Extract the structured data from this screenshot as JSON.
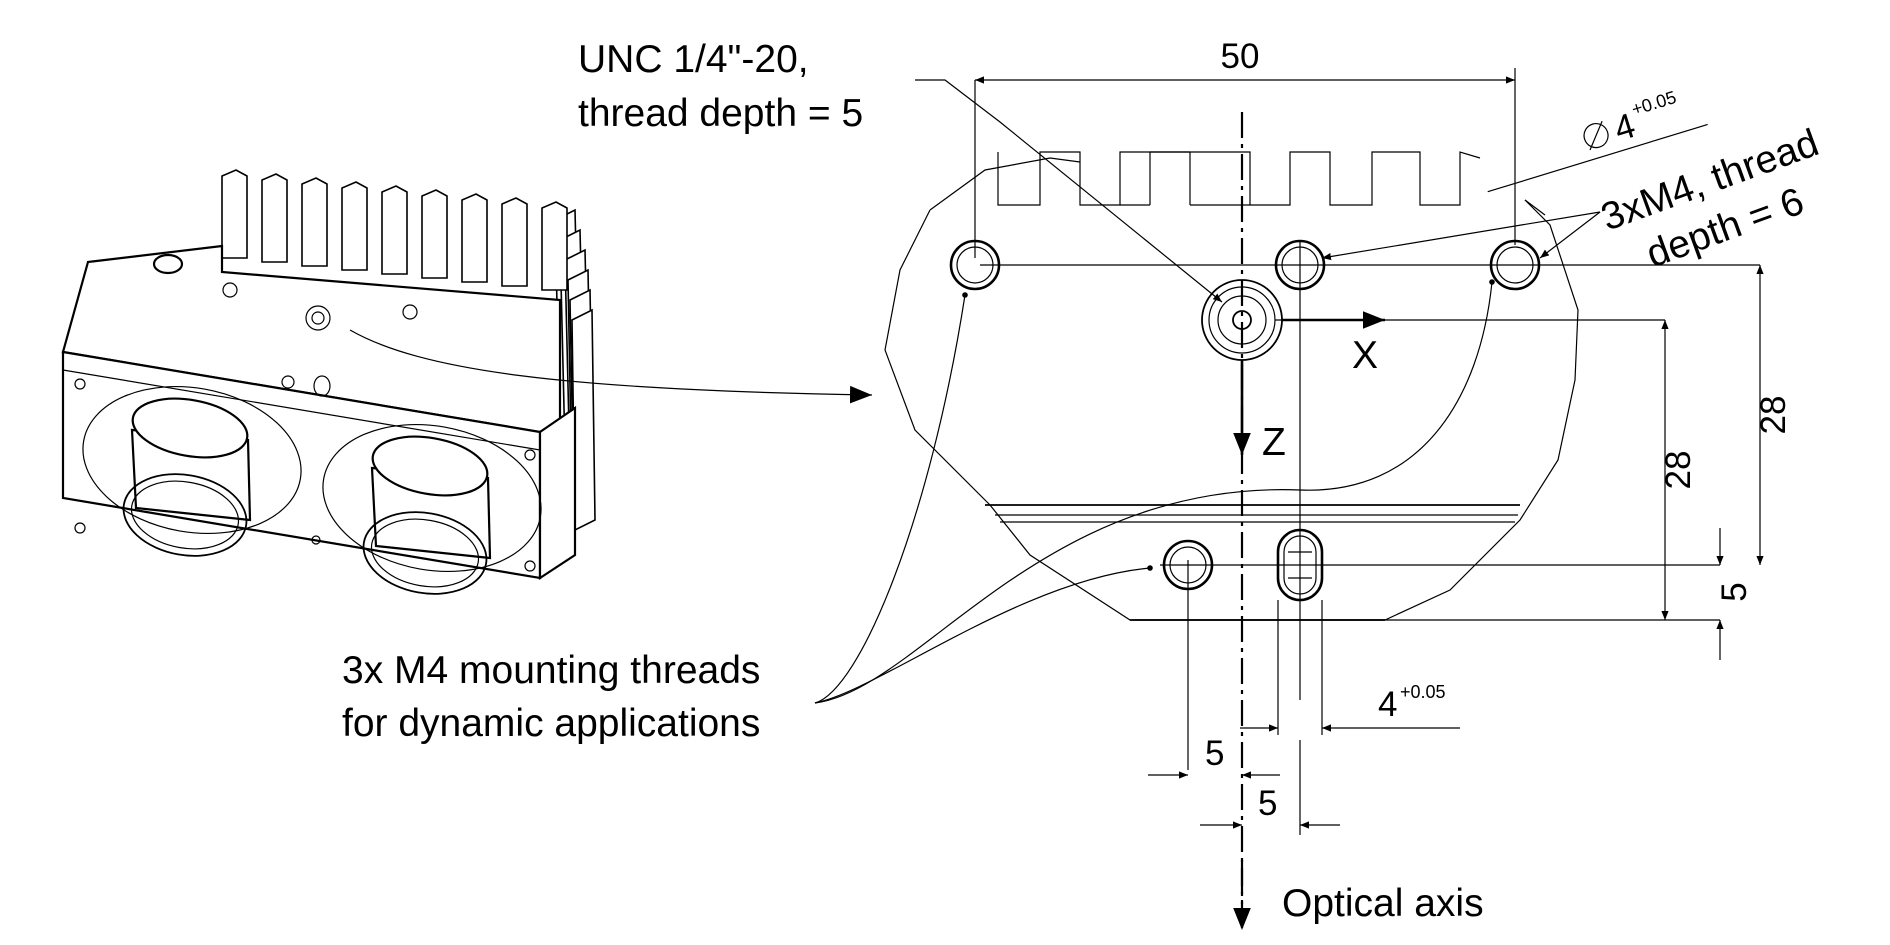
{
  "labels": {
    "unc_line1": "UNC 1/4\"-20,",
    "unc_line2": "thread depth = 5",
    "m4_top_line1": "3xM4, thread",
    "m4_top_line2": "depth = 6",
    "m4_dyn_line1": "3x M4 mounting threads",
    "m4_dyn_line2": "for dynamic applications",
    "optical_axis": "Optical axis",
    "axis_x": "X",
    "axis_z": "Z"
  },
  "dimensions": {
    "width_top": "50",
    "diameter_base": "4",
    "diameter_tol": "+0.05",
    "height_right_outer": "28",
    "height_right_inner": "28",
    "offset_right_small": "5",
    "slot_width_base": "4",
    "slot_width_tol": "+0.05",
    "offset_bottom_left": "5",
    "offset_bottom_right": "5"
  },
  "colors": {
    "line": "#000000",
    "background": "#ffffff"
  }
}
